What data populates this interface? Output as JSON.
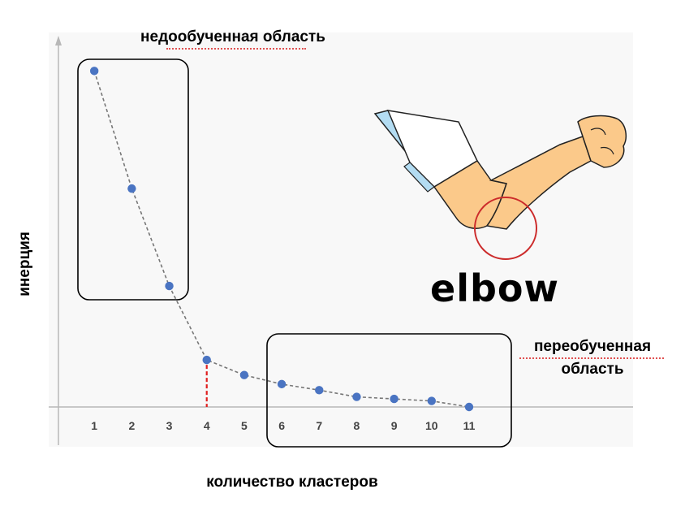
{
  "chart_data": {
    "type": "line",
    "xlabel": "количество кластеров",
    "ylabel": "инерция",
    "x": [
      1,
      2,
      3,
      4,
      5,
      6,
      7,
      8,
      9,
      10,
      11
    ],
    "y": [
      100,
      65,
      36,
      14,
      9.5,
      6.8,
      5,
      3,
      2.4,
      1.8,
      0
    ],
    "xlim": [
      0,
      11
    ],
    "ylim": [
      0,
      110
    ],
    "elbow_x": 4,
    "series_color": "#4a74c2",
    "line_style": "dashed",
    "elbow_marker_color": "#e02020",
    "grid": false,
    "annotations": {
      "underfit": "недообученная область",
      "overfit": "переобученная область",
      "elbow_word": "elbow"
    }
  },
  "illustration": {
    "icon": "elbow-arm-icon",
    "skin_color": "#fbc98a",
    "sleeve_color": "#ffffff",
    "cuff_color": "#b3dcf2",
    "circle_color": "#cc2b2b"
  }
}
